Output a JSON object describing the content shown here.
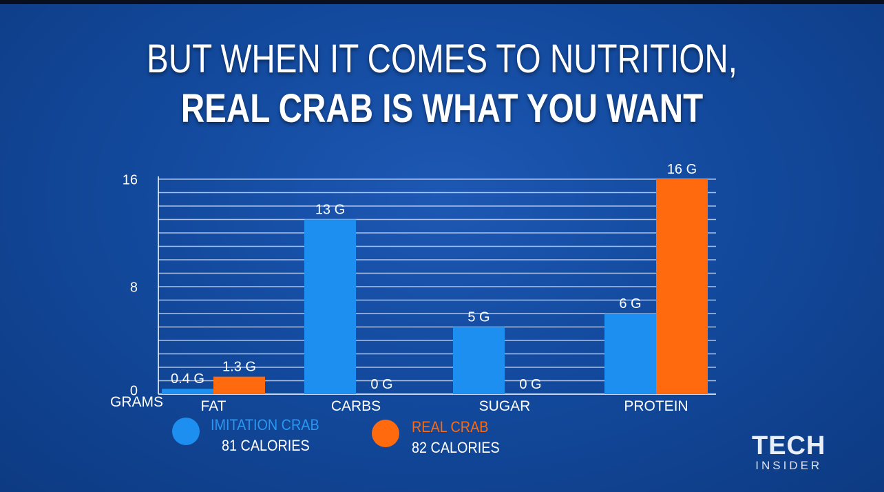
{
  "headline": {
    "line1": "BUT WHEN IT COMES TO NUTRITION,",
    "line2": "REAL CRAB IS WHAT YOU WANT"
  },
  "chart_data": {
    "type": "bar",
    "categories": [
      "FAT",
      "CARBS",
      "SUGAR",
      "PROTEIN"
    ],
    "series": [
      {
        "name": "IMITATION CRAB",
        "calories": "81 CALORIES",
        "color": "#1d8ff0",
        "values": [
          0.4,
          13,
          5,
          6
        ],
        "labels": [
          "0.4 G",
          "13 G",
          "5 G",
          "6 G"
        ]
      },
      {
        "name": "REAL CRAB",
        "calories": "82 CALORIES",
        "color": "#ff6a0e",
        "values": [
          1.3,
          0,
          0,
          16
        ],
        "labels": [
          "1.3 G",
          "0 G",
          "0 G",
          "16 G"
        ]
      }
    ],
    "ylabel": "GRAMS",
    "yticks": [
      0,
      8,
      16
    ],
    "ylim": [
      0,
      16
    ],
    "grid": true
  },
  "colors": {
    "imitation": "#1d8ff0",
    "real": "#ff6a0e",
    "background": "#134a9e"
  },
  "logo": {
    "line1": "TECH",
    "line2": "INSIDER"
  }
}
